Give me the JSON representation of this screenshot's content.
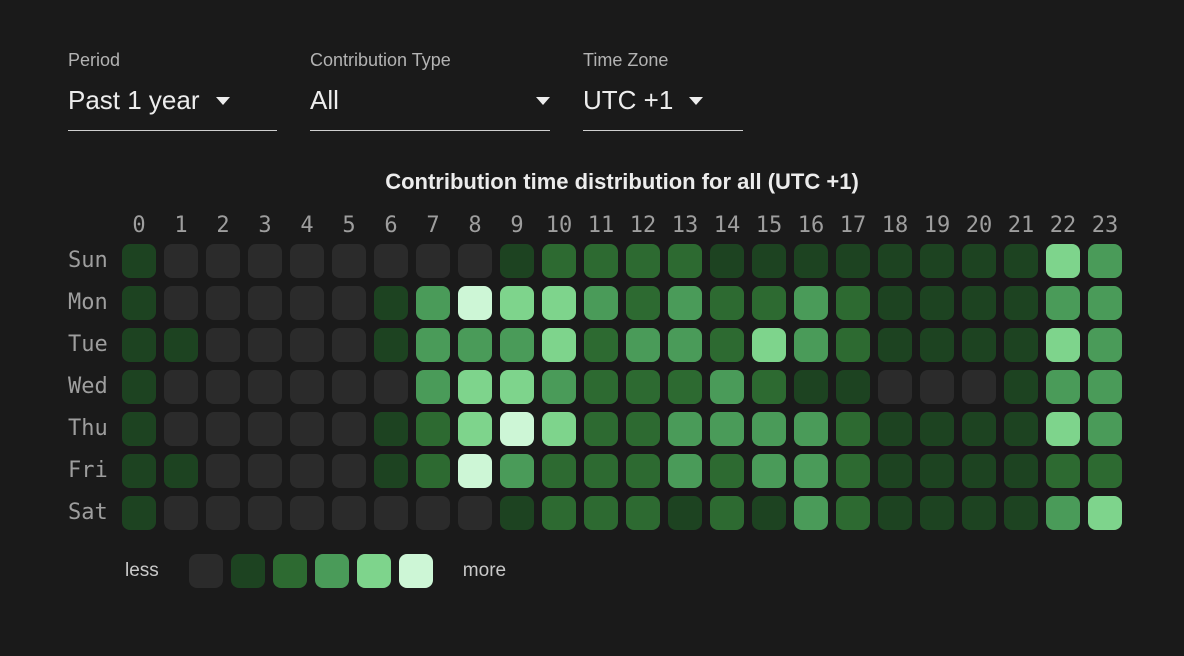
{
  "filters": [
    {
      "label": "Period",
      "value": "Past 1 year"
    },
    {
      "label": "Contribution Type",
      "value": "All"
    },
    {
      "label": "Time Zone",
      "value": "UTC +1"
    }
  ],
  "chart_data": {
    "type": "heatmap",
    "title": "Contribution time distribution for all (UTC +1)",
    "x_labels": [
      "0",
      "1",
      "2",
      "3",
      "4",
      "5",
      "6",
      "7",
      "8",
      "9",
      "10",
      "11",
      "12",
      "13",
      "14",
      "15",
      "16",
      "17",
      "18",
      "19",
      "20",
      "21",
      "22",
      "23"
    ],
    "y_labels": [
      "Sun",
      "Mon",
      "Tue",
      "Wed",
      "Thu",
      "Fri",
      "Sat"
    ],
    "legend": {
      "left": "less",
      "right": "more"
    },
    "palette": [
      "#2b2b2b",
      "#1d4321",
      "#2d6a31",
      "#4a9b59",
      "#7ed48c",
      "#cdf6d6"
    ],
    "palette_meaning": "intensity levels 0 (none) to 5 (most contributions)",
    "values": [
      [
        1,
        0,
        0,
        0,
        0,
        0,
        0,
        0,
        0,
        1,
        2,
        2,
        2,
        2,
        1,
        1,
        1,
        1,
        1,
        1,
        1,
        1,
        4,
        3
      ],
      [
        1,
        0,
        0,
        0,
        0,
        0,
        1,
        3,
        5,
        4,
        4,
        3,
        2,
        3,
        2,
        2,
        3,
        2,
        1,
        1,
        1,
        1,
        3,
        3
      ],
      [
        1,
        1,
        0,
        0,
        0,
        0,
        1,
        3,
        3,
        3,
        4,
        2,
        3,
        3,
        2,
        4,
        3,
        2,
        1,
        1,
        1,
        1,
        4,
        3
      ],
      [
        1,
        0,
        0,
        0,
        0,
        0,
        0,
        3,
        4,
        4,
        3,
        2,
        2,
        2,
        3,
        2,
        1,
        1,
        0,
        0,
        0,
        1,
        3,
        3
      ],
      [
        1,
        0,
        0,
        0,
        0,
        0,
        1,
        2,
        4,
        5,
        4,
        2,
        2,
        3,
        3,
        3,
        3,
        2,
        1,
        1,
        1,
        1,
        4,
        3
      ],
      [
        1,
        1,
        0,
        0,
        0,
        0,
        1,
        2,
        5,
        3,
        2,
        2,
        2,
        3,
        2,
        3,
        3,
        2,
        1,
        1,
        1,
        1,
        2,
        2
      ],
      [
        1,
        0,
        0,
        0,
        0,
        0,
        0,
        0,
        0,
        1,
        2,
        2,
        2,
        1,
        2,
        1,
        3,
        2,
        1,
        1,
        1,
        1,
        3,
        4
      ]
    ]
  },
  "colors": {
    "background": "#1a1a1a",
    "text_primary": "#ededed",
    "text_secondary": "#9e9e9e"
  }
}
